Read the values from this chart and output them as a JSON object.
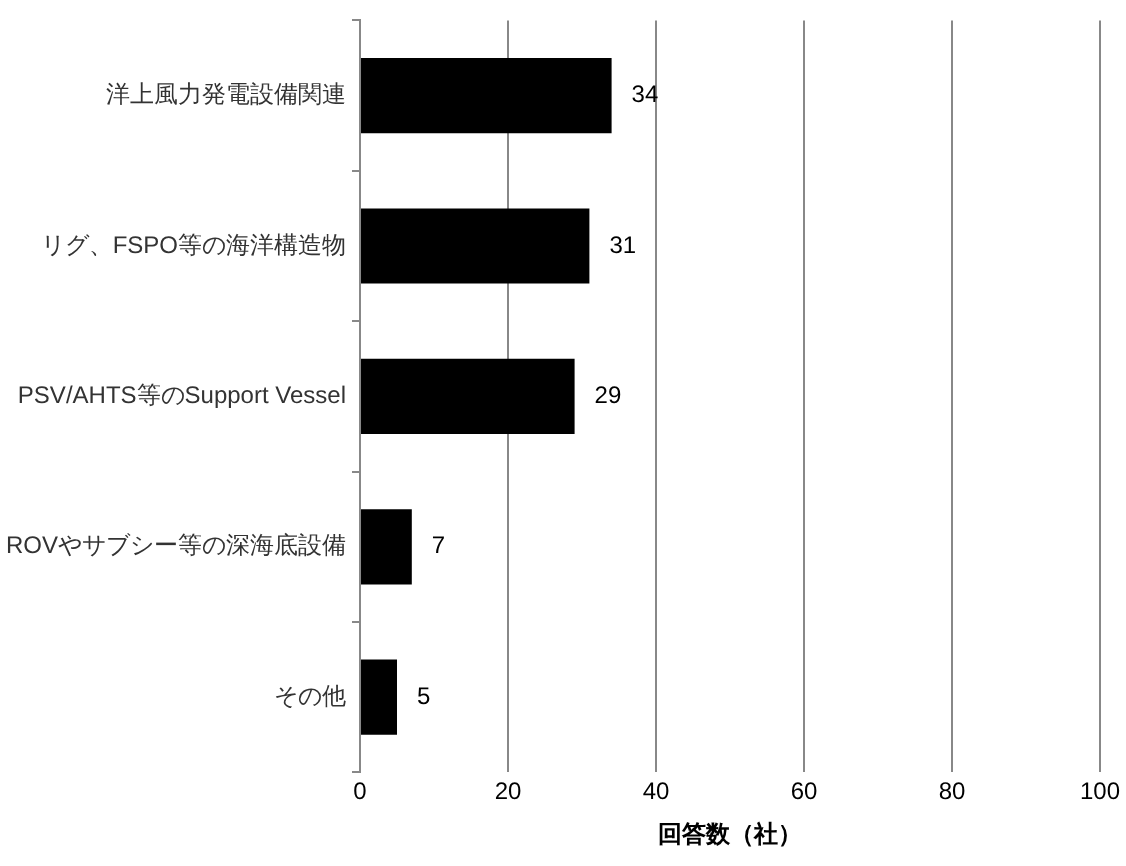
{
  "chart_data": {
    "type": "bar",
    "orientation": "horizontal",
    "xlabel": "回答数（社）",
    "categories": [
      "洋上風力発電設備関連",
      "リグ、FSPO等の海洋構造物",
      "PSV/AHTS等のSupport Vessel",
      "ROVやサブシー等の深海底設備",
      "その他"
    ],
    "values": [
      34,
      31,
      29,
      7,
      5
    ],
    "color": "#000000",
    "xlim": [
      0,
      100
    ],
    "xticks": [
      0,
      20,
      40,
      60,
      80,
      100
    ],
    "grid": "x",
    "data_labels": true,
    "legend": false
  }
}
